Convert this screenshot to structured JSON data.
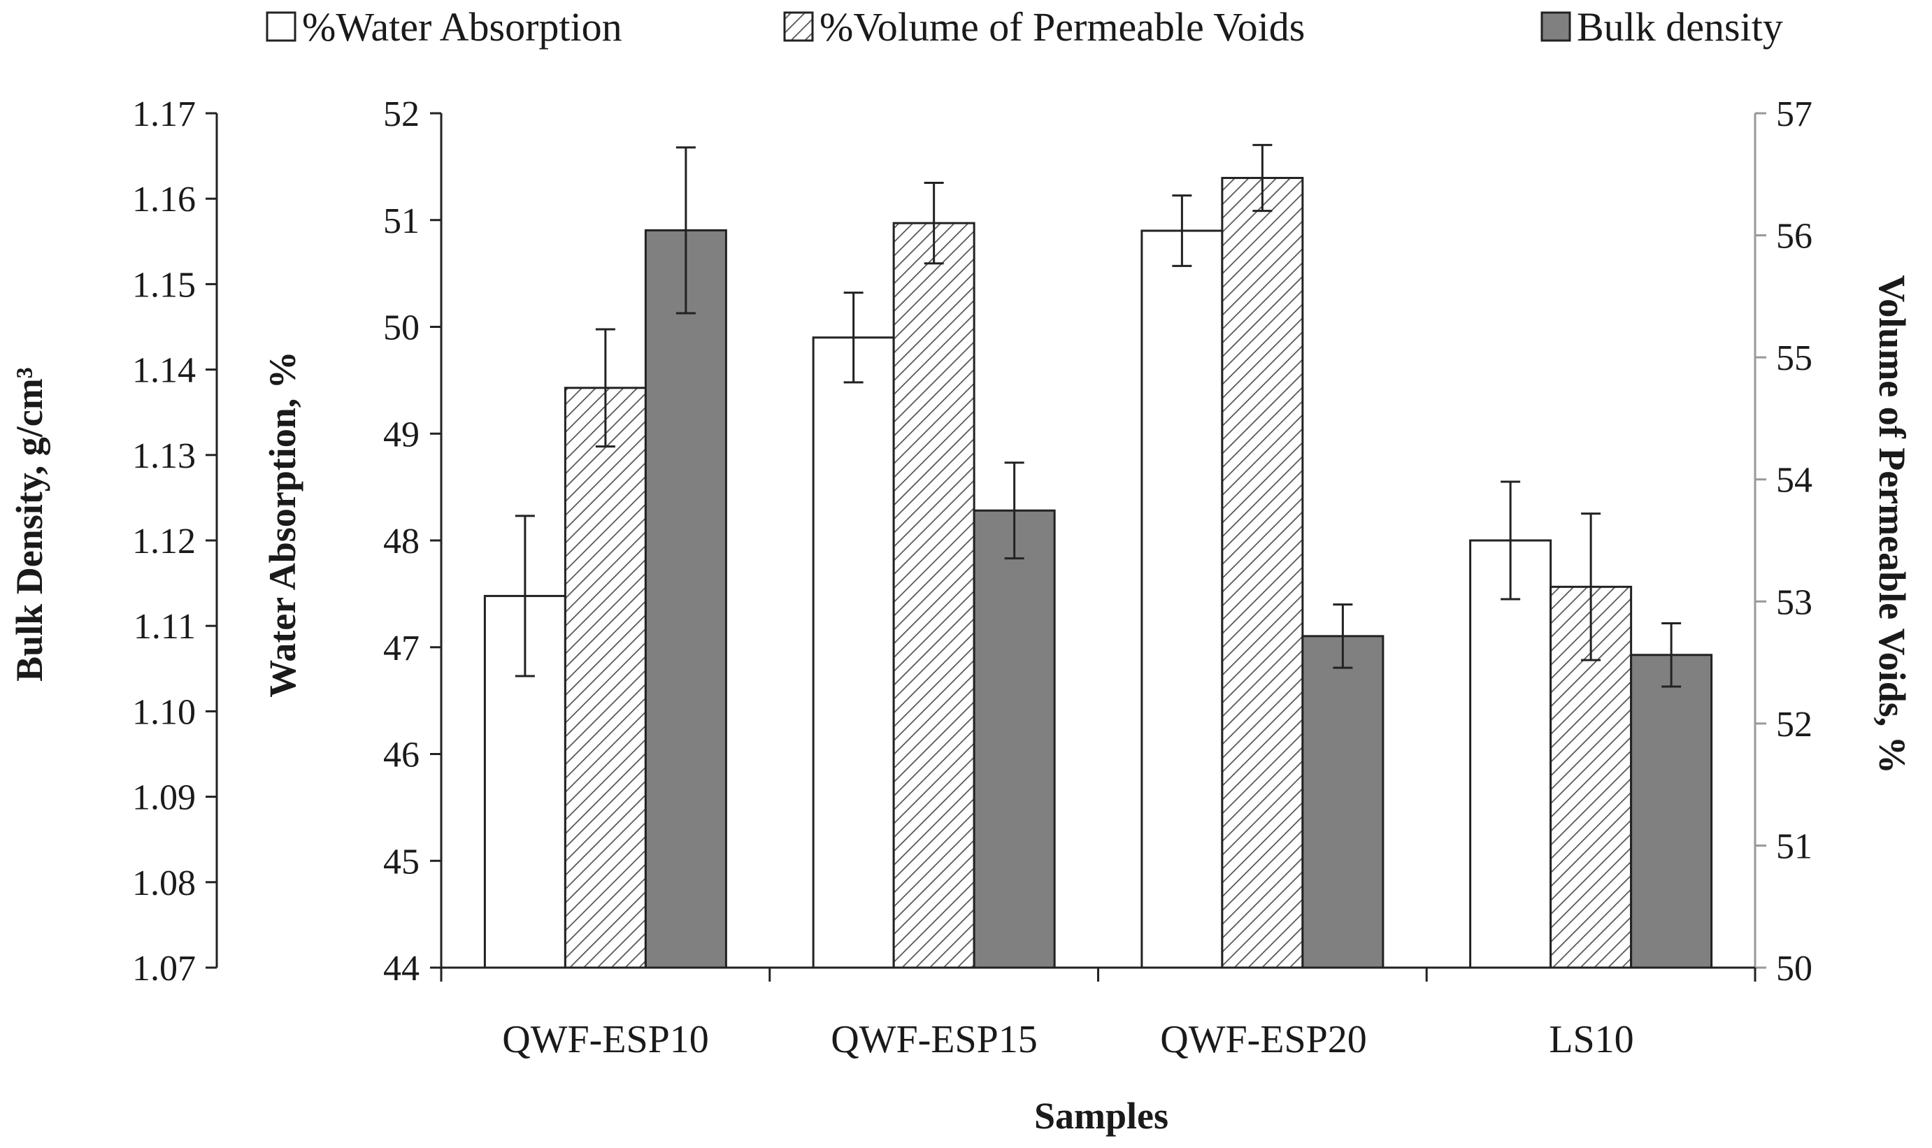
{
  "chart_data": {
    "type": "bar",
    "xlabel": "Samples",
    "categories": [
      "QWF-ESP10",
      "QWF-ESP15",
      "QWF-ESP20",
      "LS10"
    ],
    "left_outer_axis": {
      "label": "Bulk Density, g/cm³",
      "ylim": [
        1.07,
        1.17
      ],
      "ticks": [
        "1.07",
        "1.08",
        "1.09",
        "1.10",
        "1.11",
        "1.12",
        "1.13",
        "1.14",
        "1.15",
        "1.16",
        "1.17"
      ]
    },
    "left_axis": {
      "label": "Water Absorption, %",
      "ylim": [
        44,
        52
      ],
      "ticks": [
        "44",
        "45",
        "46",
        "47",
        "48",
        "49",
        "50",
        "51",
        "52"
      ]
    },
    "right_axis": {
      "label": "Volume of Permeable Voids, %",
      "ylim": [
        50,
        57
      ],
      "ticks": [
        "50",
        "51",
        "52",
        "53",
        "54",
        "55",
        "56",
        "57"
      ]
    },
    "series": [
      {
        "name": "%Water Absorption",
        "axis": "left_axis",
        "fill": "#ffffff",
        "values": [
          47.48,
          49.9,
          50.9,
          48.0
        ],
        "errors": [
          0.75,
          0.42,
          0.33,
          0.55
        ]
      },
      {
        "name": "%Volume of Permeable Voids",
        "axis": "right_axis",
        "fill": "hatch",
        "values": [
          54.75,
          56.1,
          56.47,
          53.12
        ],
        "errors": [
          0.48,
          0.33,
          0.27,
          0.6
        ]
      },
      {
        "name": "Bulk density",
        "axis": "left_outer_axis",
        "fill": "#808080",
        "values": [
          1.1563,
          1.1235,
          1.1088,
          1.1066
        ],
        "errors": [
          0.0097,
          0.0056,
          0.0037,
          0.0037
        ]
      }
    ],
    "legend": "top"
  }
}
